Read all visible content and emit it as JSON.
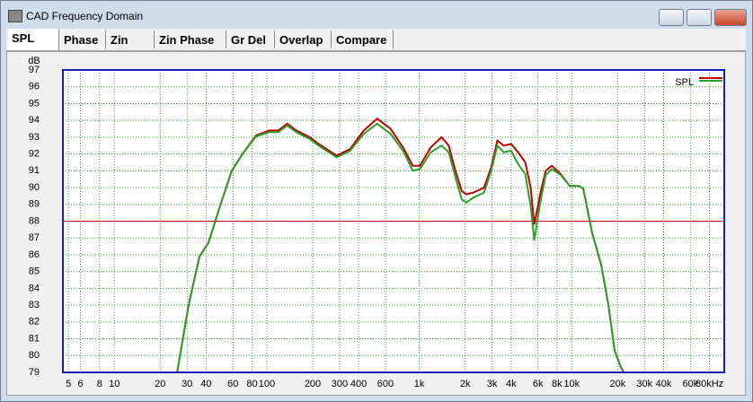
{
  "window": {
    "title": "CAD Frequency Domain"
  },
  "tabs": [
    "SPL",
    "Phase",
    "Zin",
    "Zin Phase",
    "Gr Del",
    "Overlap",
    "Compare"
  ],
  "chart_data": {
    "type": "line",
    "y_label": "dB",
    "legend": "SPL",
    "log_x": true,
    "grid": true,
    "reference_line": 88,
    "reference_color": "#c00000",
    "xlim": [
      4.6,
      100000
    ],
    "ylim": [
      79,
      97
    ],
    "yticks": [
      79,
      80,
      81,
      82,
      83,
      84,
      85,
      86,
      87,
      88,
      89,
      90,
      91,
      92,
      93,
      94,
      95,
      96,
      97
    ],
    "xticks": [
      5,
      6,
      8,
      10,
      20,
      30,
      40,
      60,
      80,
      100,
      200,
      300,
      400,
      600,
      {
        "value": 1000,
        "label": "1k"
      },
      {
        "value": 2000,
        "label": "2k"
      },
      {
        "value": 3000,
        "label": "3k"
      },
      {
        "value": 4000,
        "label": "4k"
      },
      {
        "value": 6000,
        "label": "6k"
      },
      {
        "value": 8000,
        "label": "8k"
      },
      {
        "value": 10000,
        "label": "10k"
      },
      {
        "value": 20000,
        "label": "20k"
      },
      {
        "value": 30000,
        "label": "30k"
      },
      {
        "value": 40000,
        "label": "40k"
      },
      {
        "value": 60000,
        "label": "60k"
      },
      {
        "value": 80000,
        "label": "80kHz"
      }
    ],
    "x": [
      25.8,
      30.7,
      36.2,
      41.4,
      49.4,
      58.9,
      69.3,
      85,
      104,
      119,
      136,
      156,
      191,
      219,
      287,
      352,
      432,
      529,
      648,
      793,
      907,
      1010,
      1190,
      1400,
      1560,
      1740,
      1900,
      2030,
      2260,
      2660,
      2960,
      3250,
      3580,
      4000,
      4450,
      4960,
      5380,
      5680,
      6210,
      6750,
      7400,
      8470,
      9690,
      11100,
      11900,
      13600,
      15600,
      17400,
      19100,
      21000,
      22000
    ],
    "series": [
      {
        "color": "#c00000",
        "values": [
          79,
          83.0,
          85.9,
          86.7,
          88.9,
          91.0,
          92.0,
          93.1,
          93.4,
          93.4,
          93.8,
          93.4,
          93.0,
          92.6,
          91.9,
          92.3,
          93.4,
          94.1,
          93.5,
          92.3,
          91.3,
          91.3,
          92.4,
          93.0,
          92.5,
          90.9,
          89.8,
          89.6,
          89.7,
          90.0,
          91.2,
          92.8,
          92.5,
          92.6,
          92.1,
          91.5,
          90.0,
          87.8,
          89.6,
          91.0,
          91.3,
          90.8,
          90.1,
          90.1,
          89.95,
          87.3,
          85.4,
          83.0,
          80.3,
          79.3,
          79
        ]
      },
      {
        "color": "#2aa02a",
        "values": [
          79,
          83.0,
          85.9,
          86.7,
          88.9,
          91.0,
          92.0,
          93.05,
          93.3,
          93.3,
          93.7,
          93.3,
          92.9,
          92.5,
          91.8,
          92.2,
          93.2,
          93.8,
          93.2,
          92.1,
          91.0,
          91.1,
          92.1,
          92.5,
          92.1,
          90.5,
          89.3,
          89.1,
          89.4,
          89.7,
          91.0,
          92.5,
          92.1,
          92.2,
          91.4,
          90.8,
          88.9,
          86.85,
          89.1,
          90.75,
          91.1,
          90.75,
          90.1,
          90.1,
          89.95,
          87.3,
          85.4,
          83.0,
          80.3,
          79.3,
          79
        ]
      }
    ]
  }
}
